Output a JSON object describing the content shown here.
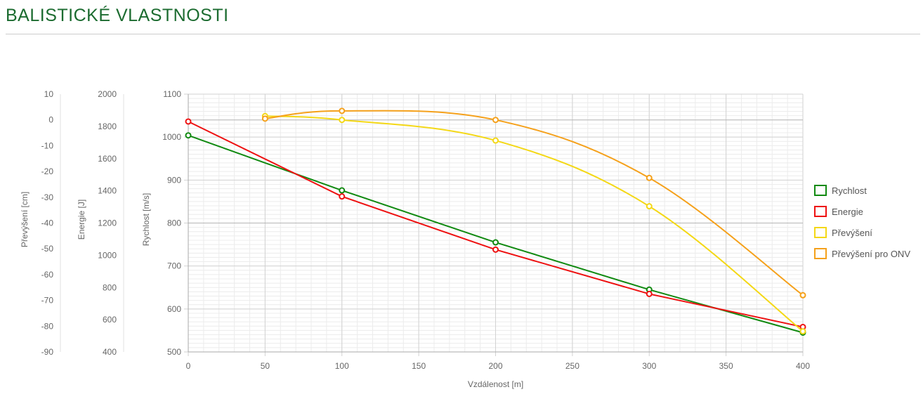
{
  "page": {
    "title": "BALISTICKÉ VLASTNOSTI"
  },
  "chart_data": {
    "type": "line",
    "x": [
      0,
      50,
      100,
      200,
      300,
      400
    ],
    "xlabel": "Vzdálenost [m]",
    "xlim": [
      0,
      400
    ],
    "xticks": [
      "0",
      "50",
      "100",
      "150",
      "200",
      "250",
      "300",
      "350",
      "400"
    ],
    "grid": true,
    "legend_position": "right",
    "axes": {
      "prevyseni": {
        "label": "Převýšení [cm]",
        "lim": [
          -90,
          10
        ],
        "ticks": [
          "10",
          "0",
          "-10",
          "-20",
          "-30",
          "-40",
          "-50",
          "-60",
          "-70",
          "-80",
          "-90"
        ]
      },
      "energie": {
        "label": "Energie [J]",
        "lim": [
          400,
          2000
        ],
        "ticks": [
          "2000",
          "1800",
          "1600",
          "1400",
          "1200",
          "1000",
          "800",
          "600",
          "400"
        ]
      },
      "rychlost": {
        "label": "Rychlost [m/s]",
        "lim": [
          500,
          1100
        ],
        "ticks": [
          "1100",
          "1000",
          "900",
          "800",
          "700",
          "600",
          "500"
        ]
      }
    },
    "series": [
      {
        "name": "Rychlost",
        "axis": "rychlost",
        "color": "#118a11",
        "x": [
          0,
          100,
          200,
          300,
          400
        ],
        "values": [
          1004,
          876,
          755,
          645,
          545
        ]
      },
      {
        "name": "Energie",
        "axis": "energie",
        "color": "#ee1111",
        "x": [
          0,
          100,
          200,
          300,
          400
        ],
        "values": [
          1830,
          1365,
          1035,
          760,
          555
        ]
      },
      {
        "name": "Převýšení",
        "axis": "prevyseni",
        "color": "#f4d816",
        "x": [
          50,
          100,
          200,
          300,
          400
        ],
        "values": [
          1.5,
          0,
          -8,
          -33.5,
          -82
        ]
      },
      {
        "name": "Převýšení pro ONV",
        "axis": "prevyseni",
        "color": "#f5a11b",
        "x": [
          50,
          100,
          200,
          300,
          400
        ],
        "values": [
          0.5,
          3.5,
          0,
          -22.5,
          -68
        ]
      }
    ]
  }
}
